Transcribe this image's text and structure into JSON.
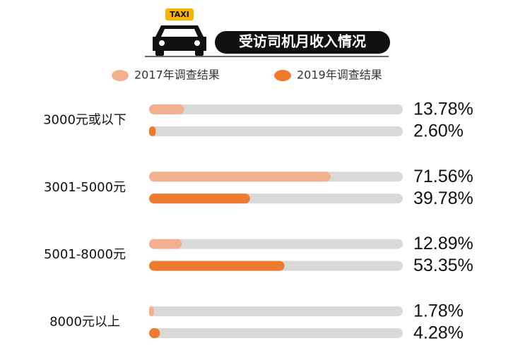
{
  "chart_data": {
    "type": "bar",
    "orientation": "horizontal",
    "title": "受访司机月收入情况",
    "icon_label": "TAXI",
    "categories": [
      "3000元或以下",
      "3001-5000元",
      "5001-8000元",
      "8000元以上"
    ],
    "series": [
      {
        "name": "2017年调查结果",
        "color": "#f2b08f",
        "values": [
          13.78,
          71.56,
          12.89,
          1.78
        ],
        "value_labels": [
          "13.78%",
          "71.56%",
          "12.89%",
          "1.78%"
        ]
      },
      {
        "name": "2019年调查结果",
        "color": "#ee7a2e",
        "values": [
          2.6,
          39.78,
          53.35,
          4.28
        ],
        "value_labels": [
          "2.60%",
          "39.78%",
          "53.35%",
          "4.28%"
        ]
      }
    ],
    "xlim": [
      0,
      100
    ],
    "track_color": "#d9d9d9"
  }
}
